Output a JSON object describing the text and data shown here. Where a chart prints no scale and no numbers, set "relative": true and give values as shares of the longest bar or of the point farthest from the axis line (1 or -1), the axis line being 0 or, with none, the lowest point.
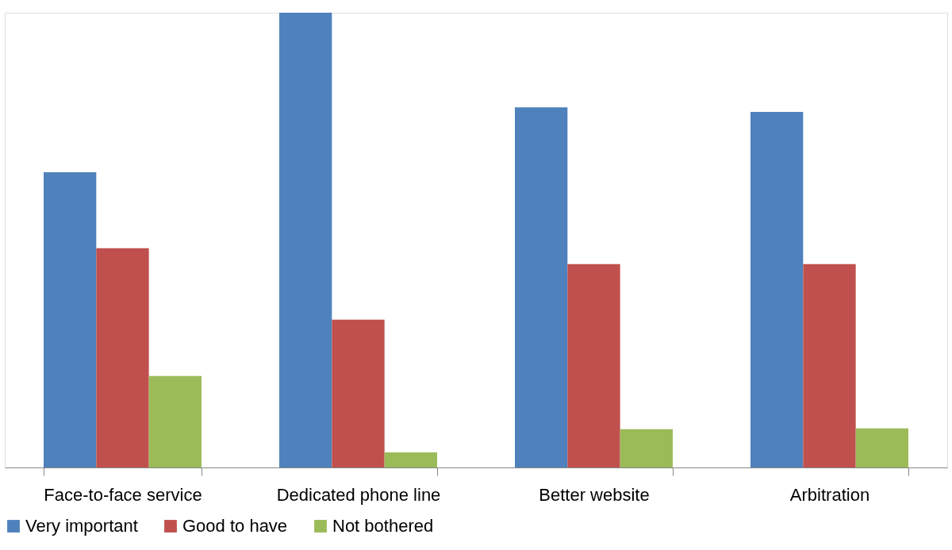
{
  "chart_data": {
    "type": "bar",
    "relative": true,
    "categories": [
      "Face-to-face service",
      "Dedicated phone line",
      "Better website",
      "Arbitration"
    ],
    "series": [
      {
        "name": "Very important",
        "color": "#4f81bd",
        "values": [
          0.649,
          1,
          0.792,
          0.782
        ]
      },
      {
        "name": "Good to have",
        "color": "#c0504d",
        "values": [
          0.482,
          0.325,
          0.447,
          0.447
        ]
      },
      {
        "name": "Not bothered",
        "color": "#9bbb59",
        "values": [
          0.201,
          0.033,
          0.084,
          0.086
        ]
      }
    ],
    "legend": "bottom",
    "grid": false
  }
}
